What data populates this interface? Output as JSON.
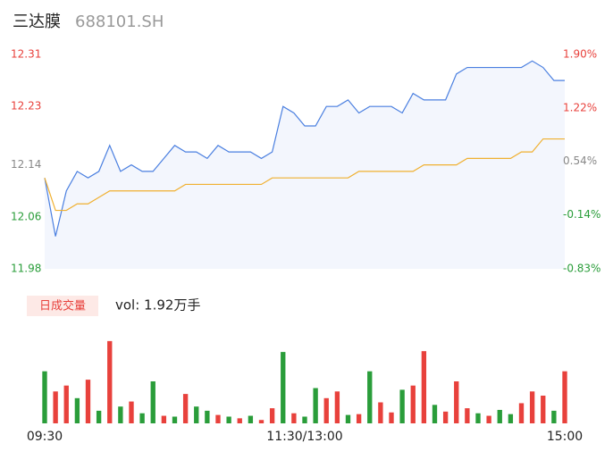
{
  "chart_data": {
    "type": "intraday",
    "title": "三达膜",
    "subtitle": "688101.SH",
    "x": [
      0,
      5,
      10,
      15,
      20,
      25,
      30,
      35,
      40,
      45,
      50,
      55,
      60,
      65,
      70,
      75,
      80,
      85,
      90,
      95,
      100,
      105,
      110,
      115,
      120,
      125,
      130,
      135,
      140,
      145,
      150,
      155,
      160,
      165,
      170,
      175,
      180,
      185,
      190,
      195,
      200,
      205,
      210,
      215,
      220,
      225,
      230,
      235,
      240
    ],
    "xlim": [
      0,
      240
    ],
    "xticks": [
      {
        "value": 0,
        "label": "09:30"
      },
      {
        "value": 120,
        "label": "11:30/13:00"
      },
      {
        "value": 240,
        "label": "15:00"
      }
    ],
    "ylim": [
      11.98,
      12.31
    ],
    "yticks": [
      12.31,
      12.23,
      12.14,
      12.06,
      11.98
    ],
    "ytick_colors": [
      "#e8413c",
      "#e8413c",
      "#888888",
      "#2a9d3a",
      "#2a9d3a"
    ],
    "y2lim": [
      -0.83,
      1.9
    ],
    "y2ticks": [
      {
        "value": 1.9,
        "label": "1.90%"
      },
      {
        "value": 1.22,
        "label": "1.22%"
      },
      {
        "value": 0.54,
        "label": "0.54%"
      },
      {
        "value": -0.14,
        "label": "-0.14%"
      },
      {
        "value": -0.83,
        "label": "-0.83%"
      }
    ],
    "series": [
      {
        "name": "price",
        "color": "#4a7fe0",
        "values": [
          12.12,
          12.03,
          12.1,
          12.13,
          12.12,
          12.13,
          12.17,
          12.13,
          12.14,
          12.13,
          12.13,
          12.15,
          12.17,
          12.16,
          12.16,
          12.15,
          12.17,
          12.16,
          12.16,
          12.16,
          12.15,
          12.16,
          12.23,
          12.22,
          12.2,
          12.2,
          12.23,
          12.23,
          12.24,
          12.22,
          12.23,
          12.23,
          12.23,
          12.22,
          12.25,
          12.24,
          12.24,
          12.24,
          12.28,
          12.29,
          12.29,
          12.29,
          12.29,
          12.29,
          12.29,
          12.3,
          12.29,
          12.27,
          12.27
        ]
      },
      {
        "name": "average",
        "color": "#f0b030",
        "values": [
          12.12,
          12.07,
          12.07,
          12.08,
          12.08,
          12.09,
          12.1,
          12.1,
          12.1,
          12.1,
          12.1,
          12.1,
          12.1,
          12.11,
          12.11,
          12.11,
          12.11,
          12.11,
          12.11,
          12.11,
          12.11,
          12.12,
          12.12,
          12.12,
          12.12,
          12.12,
          12.12,
          12.12,
          12.12,
          12.13,
          12.13,
          12.13,
          12.13,
          12.13,
          12.13,
          12.14,
          12.14,
          12.14,
          12.14,
          12.15,
          12.15,
          12.15,
          12.15,
          12.15,
          12.16,
          12.16,
          12.18,
          12.18,
          12.18
        ]
      }
    ],
    "volume_label": "日成交量",
    "volume_text": "vol: 1.92万手",
    "volume_ylim": [
      0,
      1000
    ],
    "volume": [
      620,
      380,
      450,
      300,
      520,
      150,
      980,
      200,
      260,
      120,
      500,
      90,
      80,
      350,
      200,
      150,
      100,
      80,
      60,
      90,
      40,
      180,
      850,
      120,
      80,
      420,
      300,
      380,
      100,
      110,
      620,
      250,
      130,
      400,
      450,
      860,
      220,
      140,
      500,
      180,
      120,
      90,
      160,
      110,
      240,
      380,
      330,
      150,
      620
    ],
    "volume_colors": [
      "#2a9d3a",
      "#e8413c",
      "#e8413c",
      "#2a9d3a",
      "#e8413c",
      "#2a9d3a",
      "#e8413c",
      "#2a9d3a",
      "#e8413c",
      "#2a9d3a",
      "#2a9d3a",
      "#e8413c",
      "#2a9d3a",
      "#e8413c",
      "#2a9d3a",
      "#2a9d3a",
      "#e8413c",
      "#2a9d3a",
      "#e8413c",
      "#2a9d3a",
      "#e8413c",
      "#e8413c",
      "#2a9d3a",
      "#e8413c",
      "#2a9d3a",
      "#2a9d3a",
      "#e8413c",
      "#e8413c",
      "#2a9d3a",
      "#e8413c",
      "#2a9d3a",
      "#e8413c",
      "#e8413c",
      "#2a9d3a",
      "#e8413c",
      "#e8413c",
      "#2a9d3a",
      "#e8413c",
      "#e8413c",
      "#e8413c",
      "#2a9d3a",
      "#e8413c",
      "#2a9d3a",
      "#2a9d3a",
      "#e8413c",
      "#e8413c",
      "#e8413c",
      "#2a9d3a",
      "#e8413c"
    ]
  }
}
